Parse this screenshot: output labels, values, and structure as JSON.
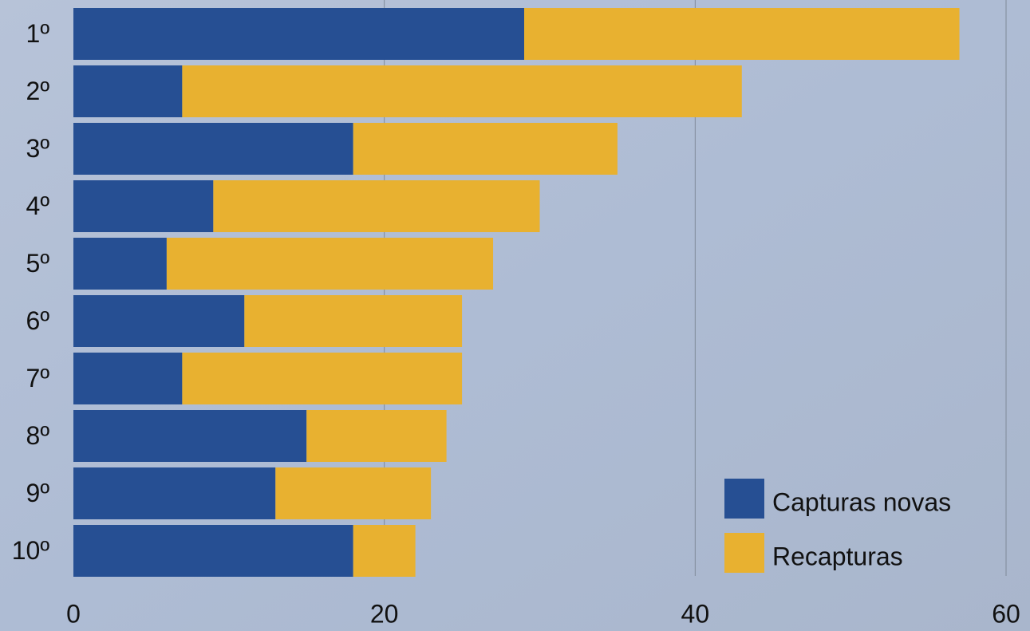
{
  "chart_data": {
    "type": "stacked-bar-horizontal",
    "categories": [
      "1º",
      "2º",
      "3º",
      "4º",
      "5º",
      "6º",
      "7º",
      "8º",
      "9º",
      "10º"
    ],
    "series": [
      {
        "name": "Capturas novas",
        "color": "#264f93",
        "values": [
          29,
          7,
          18,
          9,
          6,
          11,
          7,
          15,
          13,
          18
        ]
      },
      {
        "name": "Recapturas",
        "color": "#e8b130",
        "values": [
          28,
          36,
          17,
          21,
          21,
          14,
          18,
          9,
          10,
          4
        ]
      }
    ],
    "xlim": [
      0,
      60
    ],
    "xticks": [
      0,
      20,
      40,
      60
    ],
    "grid": true,
    "legend": "lower right"
  }
}
